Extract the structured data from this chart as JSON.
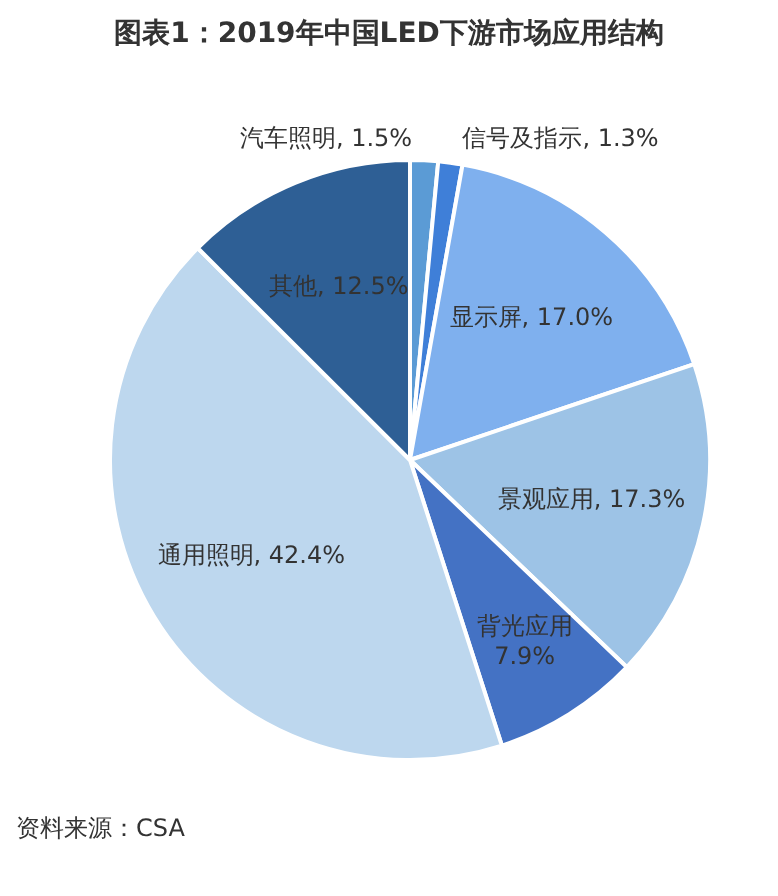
{
  "chart_data": {
    "type": "pie",
    "title": "图表1：2019年中国LED下游市场应用结构",
    "categories": [
      "汽车照明",
      "信号及指示",
      "显示屏",
      "景观应用",
      "背光应用",
      "通用照明",
      "其他"
    ],
    "values": [
      1.5,
      1.3,
      17.0,
      17.3,
      7.9,
      42.4,
      12.5
    ],
    "value_labels": [
      "1.5%",
      "1.3%",
      "17.0%",
      "17.3%",
      "7.9%",
      "42.4%",
      "12.5%"
    ],
    "colors": [
      "#5b9bd5",
      "#3f7fd8",
      "#7fb0ee",
      "#9dc3e6",
      "#4472c4",
      "#bdd7ee",
      "#2e5f95"
    ],
    "annotations": [
      "资料来源：CSA"
    ]
  }
}
